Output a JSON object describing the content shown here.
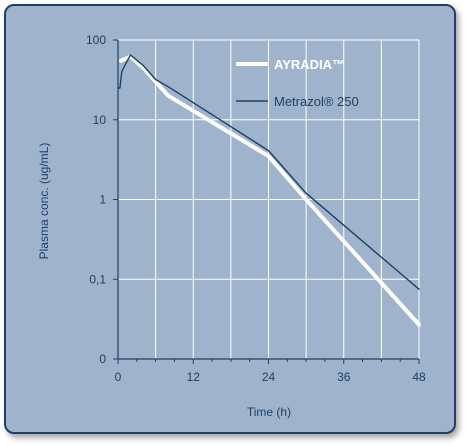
{
  "colors": {
    "panel_bg": "#9fb4cc",
    "grid": "#ffffff",
    "axis_text": "#1f3f66",
    "series_ayradia": "#ffffff",
    "series_metrazol": "#1f3f66"
  },
  "chart_data": {
    "type": "line",
    "title": "",
    "xlabel": "Time (h)",
    "ylabel": "Plasma conc. (ug/mL)",
    "y_scale": "log",
    "grid": true,
    "legend_placement": "top-right",
    "xlim": [
      0,
      48
    ],
    "ylim": [
      0,
      100
    ],
    "x_ticks": [
      0,
      12,
      24,
      36,
      48
    ],
    "x_tick_labels": [
      "0",
      "12",
      "24",
      "36",
      "48"
    ],
    "y_ticks": [
      0.01,
      0.1,
      1,
      10,
      100
    ],
    "y_tick_labels": [
      "0",
      "0,1",
      "1",
      "10",
      "100"
    ],
    "series": [
      {
        "name": "AYRADIA™",
        "style": "thick-white",
        "x": [
          0.5,
          2,
          4,
          6,
          8,
          24,
          30,
          48
        ],
        "y": [
          55,
          62,
          45,
          30,
          20,
          3.5,
          1.0,
          0.027
        ]
      },
      {
        "name": "Metrazol® 250",
        "style": "thin-navy",
        "x": [
          0,
          0.3,
          0.6,
          1.2,
          2,
          4,
          6,
          8,
          24,
          30,
          48
        ],
        "y": [
          25,
          25,
          40,
          50,
          65,
          48,
          32,
          26,
          4.1,
          1.2,
          0.075
        ]
      }
    ]
  }
}
